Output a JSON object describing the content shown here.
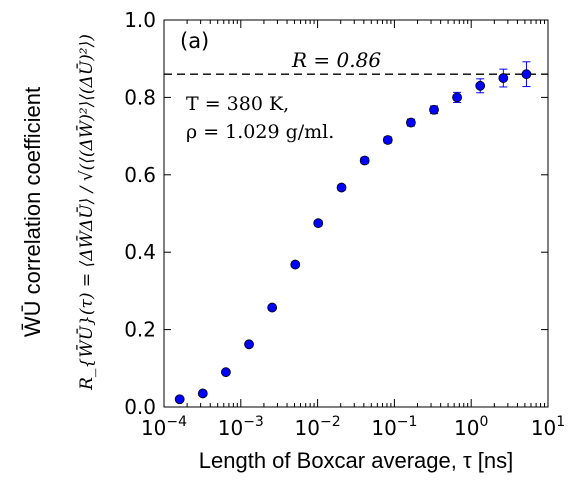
{
  "chart_data": {
    "type": "scatter",
    "title": "",
    "panel_label": "(a)",
    "xlabel": "Length of Boxcar average, τ [ns]",
    "ylabel_line1": "W̄Ū correlation coefficient",
    "ylabel_line2": "R_{W̄Ū}(τ) = ⟨ΔW̄ΔŪ⟩ / √(⟨(ΔW̄)²⟩⟨(ΔŪ)²⟩)",
    "xscale": "log",
    "xlim": [
      0.0001,
      10
    ],
    "ylim": [
      0.0,
      1.0
    ],
    "grid": false,
    "x_ticks": [
      {
        "value": 0.0001,
        "base": "10",
        "exp": "−4"
      },
      {
        "value": 0.001,
        "base": "10",
        "exp": "−3"
      },
      {
        "value": 0.01,
        "base": "10",
        "exp": "−2"
      },
      {
        "value": 0.1,
        "base": "10",
        "exp": "−1"
      },
      {
        "value": 1,
        "base": "10",
        "exp": "0"
      },
      {
        "value": 10,
        "base": "10",
        "exp": "1"
      }
    ],
    "y_ticks": [
      {
        "value": 0.0,
        "label": "0.0"
      },
      {
        "value": 0.2,
        "label": "0.2"
      },
      {
        "value": 0.4,
        "label": "0.4"
      },
      {
        "value": 0.6,
        "label": "0.6"
      },
      {
        "value": 0.8,
        "label": "0.8"
      },
      {
        "value": 1.0,
        "label": "1.0"
      }
    ],
    "reference_line": {
      "y": 0.86,
      "label": "R = 0.86",
      "style": "dashed",
      "color": "#000000"
    },
    "annotation_lines": [
      "T = 380 K,",
      "ρ = 1.029 g/ml."
    ],
    "series": [
      {
        "color": "#0000ff",
        "marker": "circle",
        "x": [
          0.00016,
          0.00032,
          0.00064,
          0.00128,
          0.00256,
          0.00512,
          0.0102,
          0.0205,
          0.041,
          0.082,
          0.164,
          0.328,
          0.655,
          1.31,
          2.62,
          5.24
        ],
        "y": [
          0.02,
          0.035,
          0.09,
          0.162,
          0.257,
          0.368,
          0.475,
          0.567,
          0.637,
          0.69,
          0.735,
          0.768,
          0.8,
          0.83,
          0.85,
          0.86
        ],
        "yerr": [
          0.003,
          0.003,
          0.004,
          0.005,
          0.005,
          0.006,
          0.007,
          0.007,
          0.008,
          0.008,
          0.009,
          0.01,
          0.013,
          0.018,
          0.023,
          0.032
        ]
      }
    ]
  }
}
